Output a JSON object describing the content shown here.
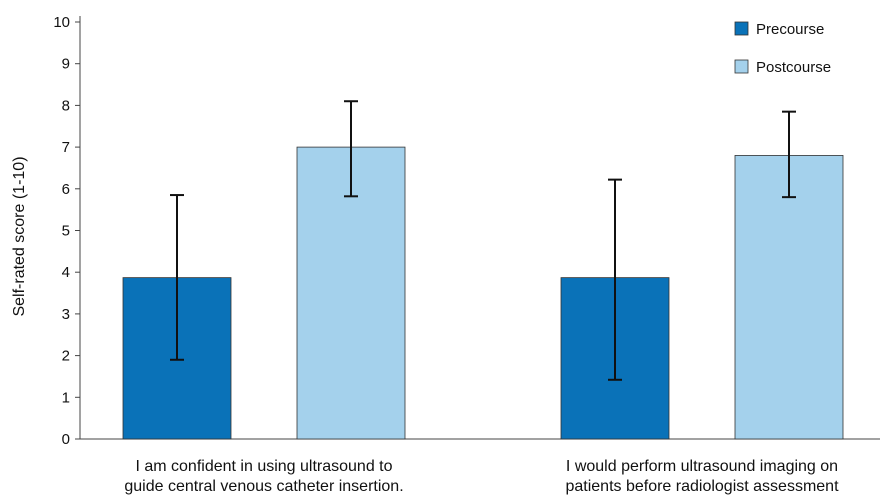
{
  "chart_data": {
    "type": "bar",
    "title": "",
    "xlabel": "",
    "ylabel": "Self-rated score (1-10)",
    "ylim": [
      0,
      10
    ],
    "yticks": [
      0,
      1,
      2,
      3,
      4,
      5,
      6,
      7,
      8,
      9,
      10
    ],
    "categories": [
      [
        "I am confident in using ultrasound to",
        "guide central venous catheter insertion."
      ],
      [
        "I would perform ultrasound imaging on",
        "patients before radiologist assessment"
      ]
    ],
    "series": [
      {
        "name": "Precourse",
        "color": "#0a72b8",
        "values": [
          3.87,
          3.87
        ],
        "error_low": [
          1.9,
          1.42
        ],
        "error_high": [
          5.85,
          6.22
        ]
      },
      {
        "name": "Postcourse",
        "color": "#a4d1ec",
        "values": [
          7.0,
          6.8
        ],
        "error_low": [
          5.82,
          5.8
        ],
        "error_high": [
          8.1,
          7.85
        ]
      }
    ],
    "legend_position": "top-right",
    "grid": false
  }
}
